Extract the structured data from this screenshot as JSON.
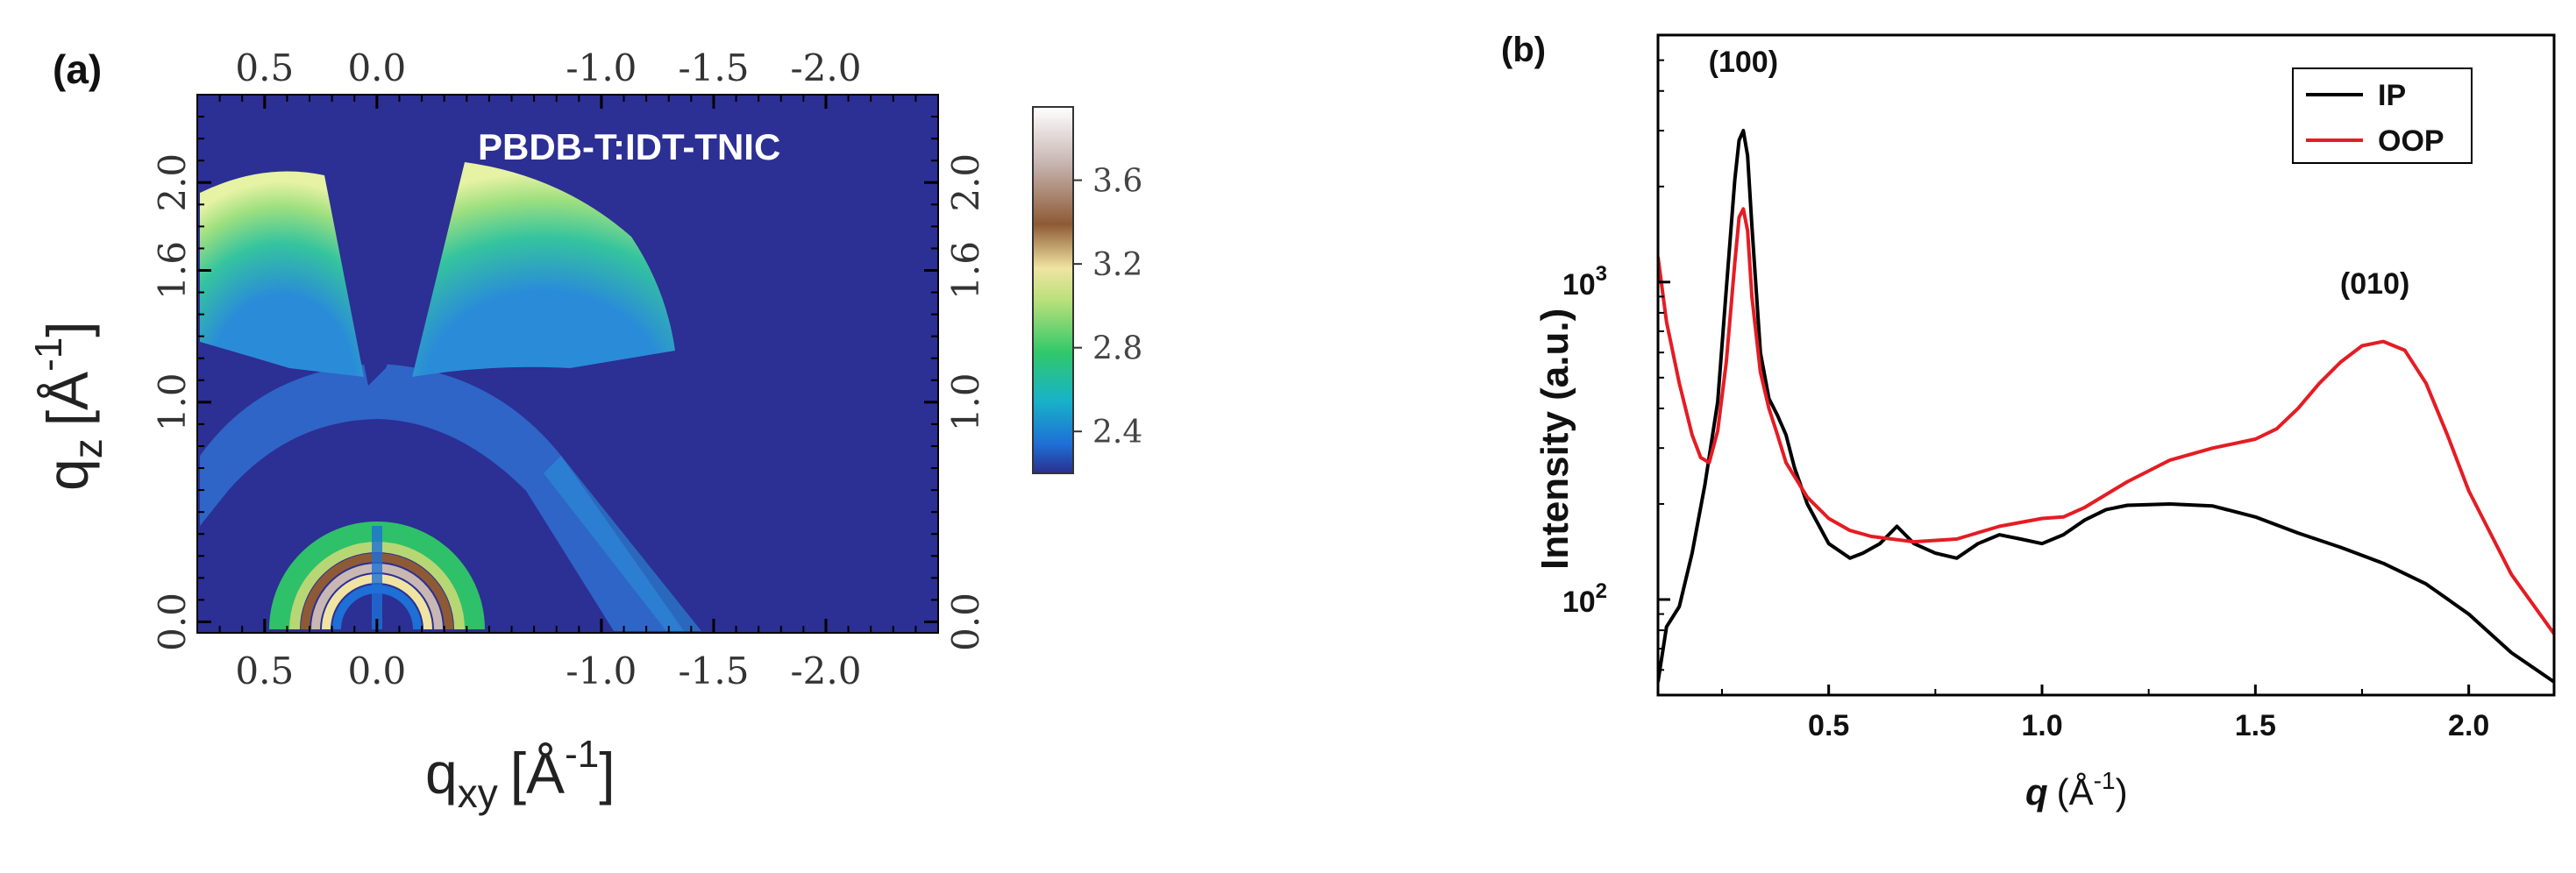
{
  "chart_data": [
    {
      "type": "heatmap",
      "panel_label": "(a)",
      "sample_label": "PBDB-T:IDT-TNIC",
      "xlabel": "q",
      "xlabel_sub": "xy",
      "xlabel_unit": "[Å",
      "xlabel_unit_sup": "-1",
      "xlabel_unit_close": "]",
      "ylabel": "q",
      "ylabel_sub": "z",
      "ylabel_unit": "[Å",
      "ylabel_unit_sup": "-1",
      "ylabel_unit_close": "]",
      "xlim": [
        0.8,
        -2.5
      ],
      "ylim": [
        -0.05,
        2.4
      ],
      "x_ticks": [
        {
          "value": 0.5,
          "label": "0.5"
        },
        {
          "value": 0.0,
          "label": "0.0"
        },
        {
          "value": -1.0,
          "label": "-1.0"
        },
        {
          "value": -1.5,
          "label": "-1.5"
        },
        {
          "value": -2.0,
          "label": "-2.0"
        }
      ],
      "y_ticks": [
        {
          "value": 0.0,
          "label": "0.0"
        },
        {
          "value": 1.0,
          "label": "1.0"
        },
        {
          "value": 1.6,
          "label": "1.6"
        },
        {
          "value": 2.0,
          "label": "2.0"
        }
      ],
      "colorbar": {
        "ticks": [
          "3.6",
          "3.2",
          "2.8",
          "2.4"
        ],
        "range": [
          2.2,
          3.95
        ],
        "colors": [
          "#2b2f8f",
          "#1e6fd6",
          "#18b3c8",
          "#31c86a",
          "#b8e07a",
          "#f0e4a2",
          "#8e5a36",
          "#c9b7b3",
          "#ffffff"
        ]
      },
      "background_color": "#2c2f93"
    },
    {
      "type": "line",
      "panel_label": "(b)",
      "xlabel": "q",
      "xlabel_unit": "(Å",
      "xlabel_unit_sup": "-1",
      "xlabel_unit_close": ")",
      "ylabel": "Intensity (a.u.)",
      "yscale": "log",
      "xlim": [
        0.1,
        2.2
      ],
      "ylim": [
        50,
        6000
      ],
      "x_ticks": [
        "0.5",
        "1.0",
        "1.5",
        "2.0"
      ],
      "y_ticks": [
        {
          "value": 100,
          "base": "10",
          "exp": "2"
        },
        {
          "value": 1000,
          "base": "10",
          "exp": "3"
        }
      ],
      "annotations": [
        {
          "text": "(100)",
          "x": 0.3,
          "y": 4600
        },
        {
          "text": "(010)",
          "x": 1.78,
          "y": 920
        }
      ],
      "series": [
        {
          "name": "IP",
          "color": "#000000",
          "x": [
            0.1,
            0.12,
            0.15,
            0.18,
            0.21,
            0.24,
            0.26,
            0.28,
            0.29,
            0.3,
            0.31,
            0.32,
            0.34,
            0.36,
            0.38,
            0.4,
            0.42,
            0.45,
            0.5,
            0.55,
            0.58,
            0.62,
            0.66,
            0.7,
            0.75,
            0.8,
            0.85,
            0.9,
            0.95,
            1.0,
            1.05,
            1.1,
            1.15,
            1.2,
            1.3,
            1.4,
            1.5,
            1.6,
            1.7,
            1.8,
            1.9,
            2.0,
            2.1,
            2.2
          ],
          "y": [
            55,
            82,
            95,
            140,
            230,
            420,
            950,
            2100,
            2800,
            3000,
            2500,
            1500,
            600,
            430,
            380,
            330,
            260,
            200,
            150,
            135,
            140,
            150,
            170,
            150,
            140,
            135,
            150,
            160,
            155,
            150,
            160,
            178,
            192,
            198,
            200,
            197,
            182,
            162,
            146,
            130,
            112,
            90,
            68,
            55
          ]
        },
        {
          "name": "OOP",
          "color": "#e51c23",
          "x": [
            0.1,
            0.12,
            0.15,
            0.18,
            0.2,
            0.22,
            0.24,
            0.26,
            0.28,
            0.29,
            0.3,
            0.31,
            0.32,
            0.34,
            0.36,
            0.38,
            0.4,
            0.45,
            0.5,
            0.55,
            0.6,
            0.7,
            0.8,
            0.9,
            1.0,
            1.05,
            1.1,
            1.2,
            1.3,
            1.4,
            1.5,
            1.55,
            1.6,
            1.65,
            1.7,
            1.75,
            1.8,
            1.85,
            1.9,
            1.95,
            2.0,
            2.1,
            2.2
          ],
          "y": [
            1200,
            750,
            480,
            330,
            280,
            270,
            340,
            560,
            1150,
            1600,
            1700,
            1450,
            900,
            520,
            400,
            330,
            270,
            210,
            180,
            165,
            158,
            152,
            155,
            170,
            180,
            182,
            195,
            235,
            275,
            300,
            320,
            345,
            400,
            480,
            560,
            630,
            650,
            610,
            480,
            330,
            220,
            120,
            78
          ]
        }
      ],
      "legend_position": "top-right"
    }
  ]
}
